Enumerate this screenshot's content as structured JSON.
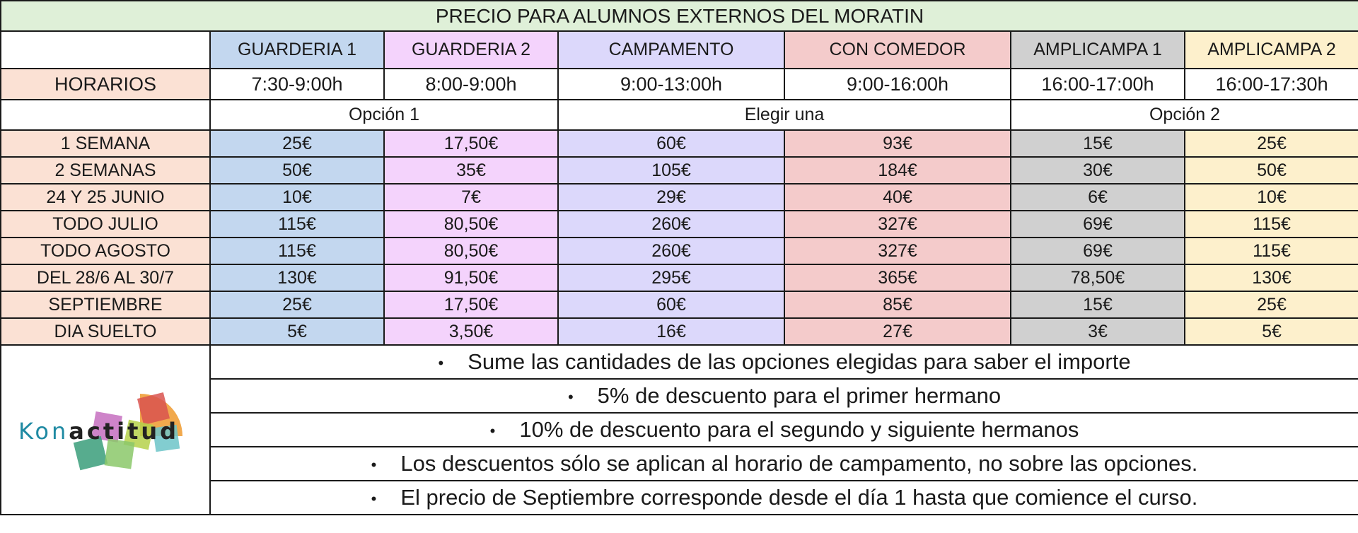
{
  "title": "PRECIO PARA ALUMNOS EXTERNOS DEL MORATIN",
  "columns": [
    {
      "label": "GUARDERIA 1",
      "hours": "7:30-9:00h",
      "color": "#c3d7ef"
    },
    {
      "label": "GUARDERIA 2",
      "hours": "8:00-9:00h",
      "color": "#f4d3fc"
    },
    {
      "label": "CAMPAMENTO",
      "hours": "9:00-13:00h",
      "color": "#dcd8fb"
    },
    {
      "label": "CON COMEDOR",
      "hours": "9:00-16:00h",
      "color": "#f4cbcb"
    },
    {
      "label": "AMPLICAMPA 1",
      "hours": "16:00-17:00h",
      "color": "#d0d0d0"
    },
    {
      "label": "AMPLICAMPA 2",
      "hours": "16:00-17:30h",
      "color": "#fdf0cc"
    }
  ],
  "hours_label": "HORARIOS",
  "option_groups": [
    "Opción 1",
    "Elegir una",
    "Opción 2"
  ],
  "rows": [
    {
      "label": "1 SEMANA",
      "values": [
        "25€",
        "17,50€",
        "60€",
        "93€",
        "15€",
        "25€"
      ]
    },
    {
      "label": "2 SEMANAS",
      "values": [
        "50€",
        "35€",
        "105€",
        "184€",
        "30€",
        "50€"
      ]
    },
    {
      "label": "24 Y 25 JUNIO",
      "values": [
        "10€",
        "7€",
        "29€",
        "40€",
        "6€",
        "10€"
      ]
    },
    {
      "label": "TODO JULIO",
      "values": [
        "115€",
        "80,50€",
        "260€",
        "327€",
        "69€",
        "115€"
      ]
    },
    {
      "label": "TODO AGOSTO",
      "values": [
        "115€",
        "80,50€",
        "260€",
        "327€",
        "69€",
        "115€"
      ]
    },
    {
      "label": "DEL 28/6 AL 30/7",
      "values": [
        "130€",
        "91,50€",
        "295€",
        "365€",
        "78,50€",
        "130€"
      ]
    },
    {
      "label": "SEPTIEMBRE",
      "values": [
        "25€",
        "17,50€",
        "60€",
        "85€",
        "15€",
        "25€"
      ]
    },
    {
      "label": "DIA SUELTO",
      "values": [
        "5€",
        "3,50€",
        "16€",
        "27€",
        "3€",
        "5€"
      ]
    }
  ],
  "notes": [
    "Sume las cantidades de las opciones elegidas para saber el importe",
    "5% de descuento para el primer hermano",
    "10% de descuento para el segundo y siguiente hermanos",
    "Los descuentos sólo se aplican al horario de campamento, no sobre las opciones.",
    "El precio de Septiembre corresponde desde el día 1 hasta que comience el curso."
  ],
  "bullet_glyph": "•",
  "logo": {
    "part1": "Kon",
    "part2": "actitud"
  }
}
